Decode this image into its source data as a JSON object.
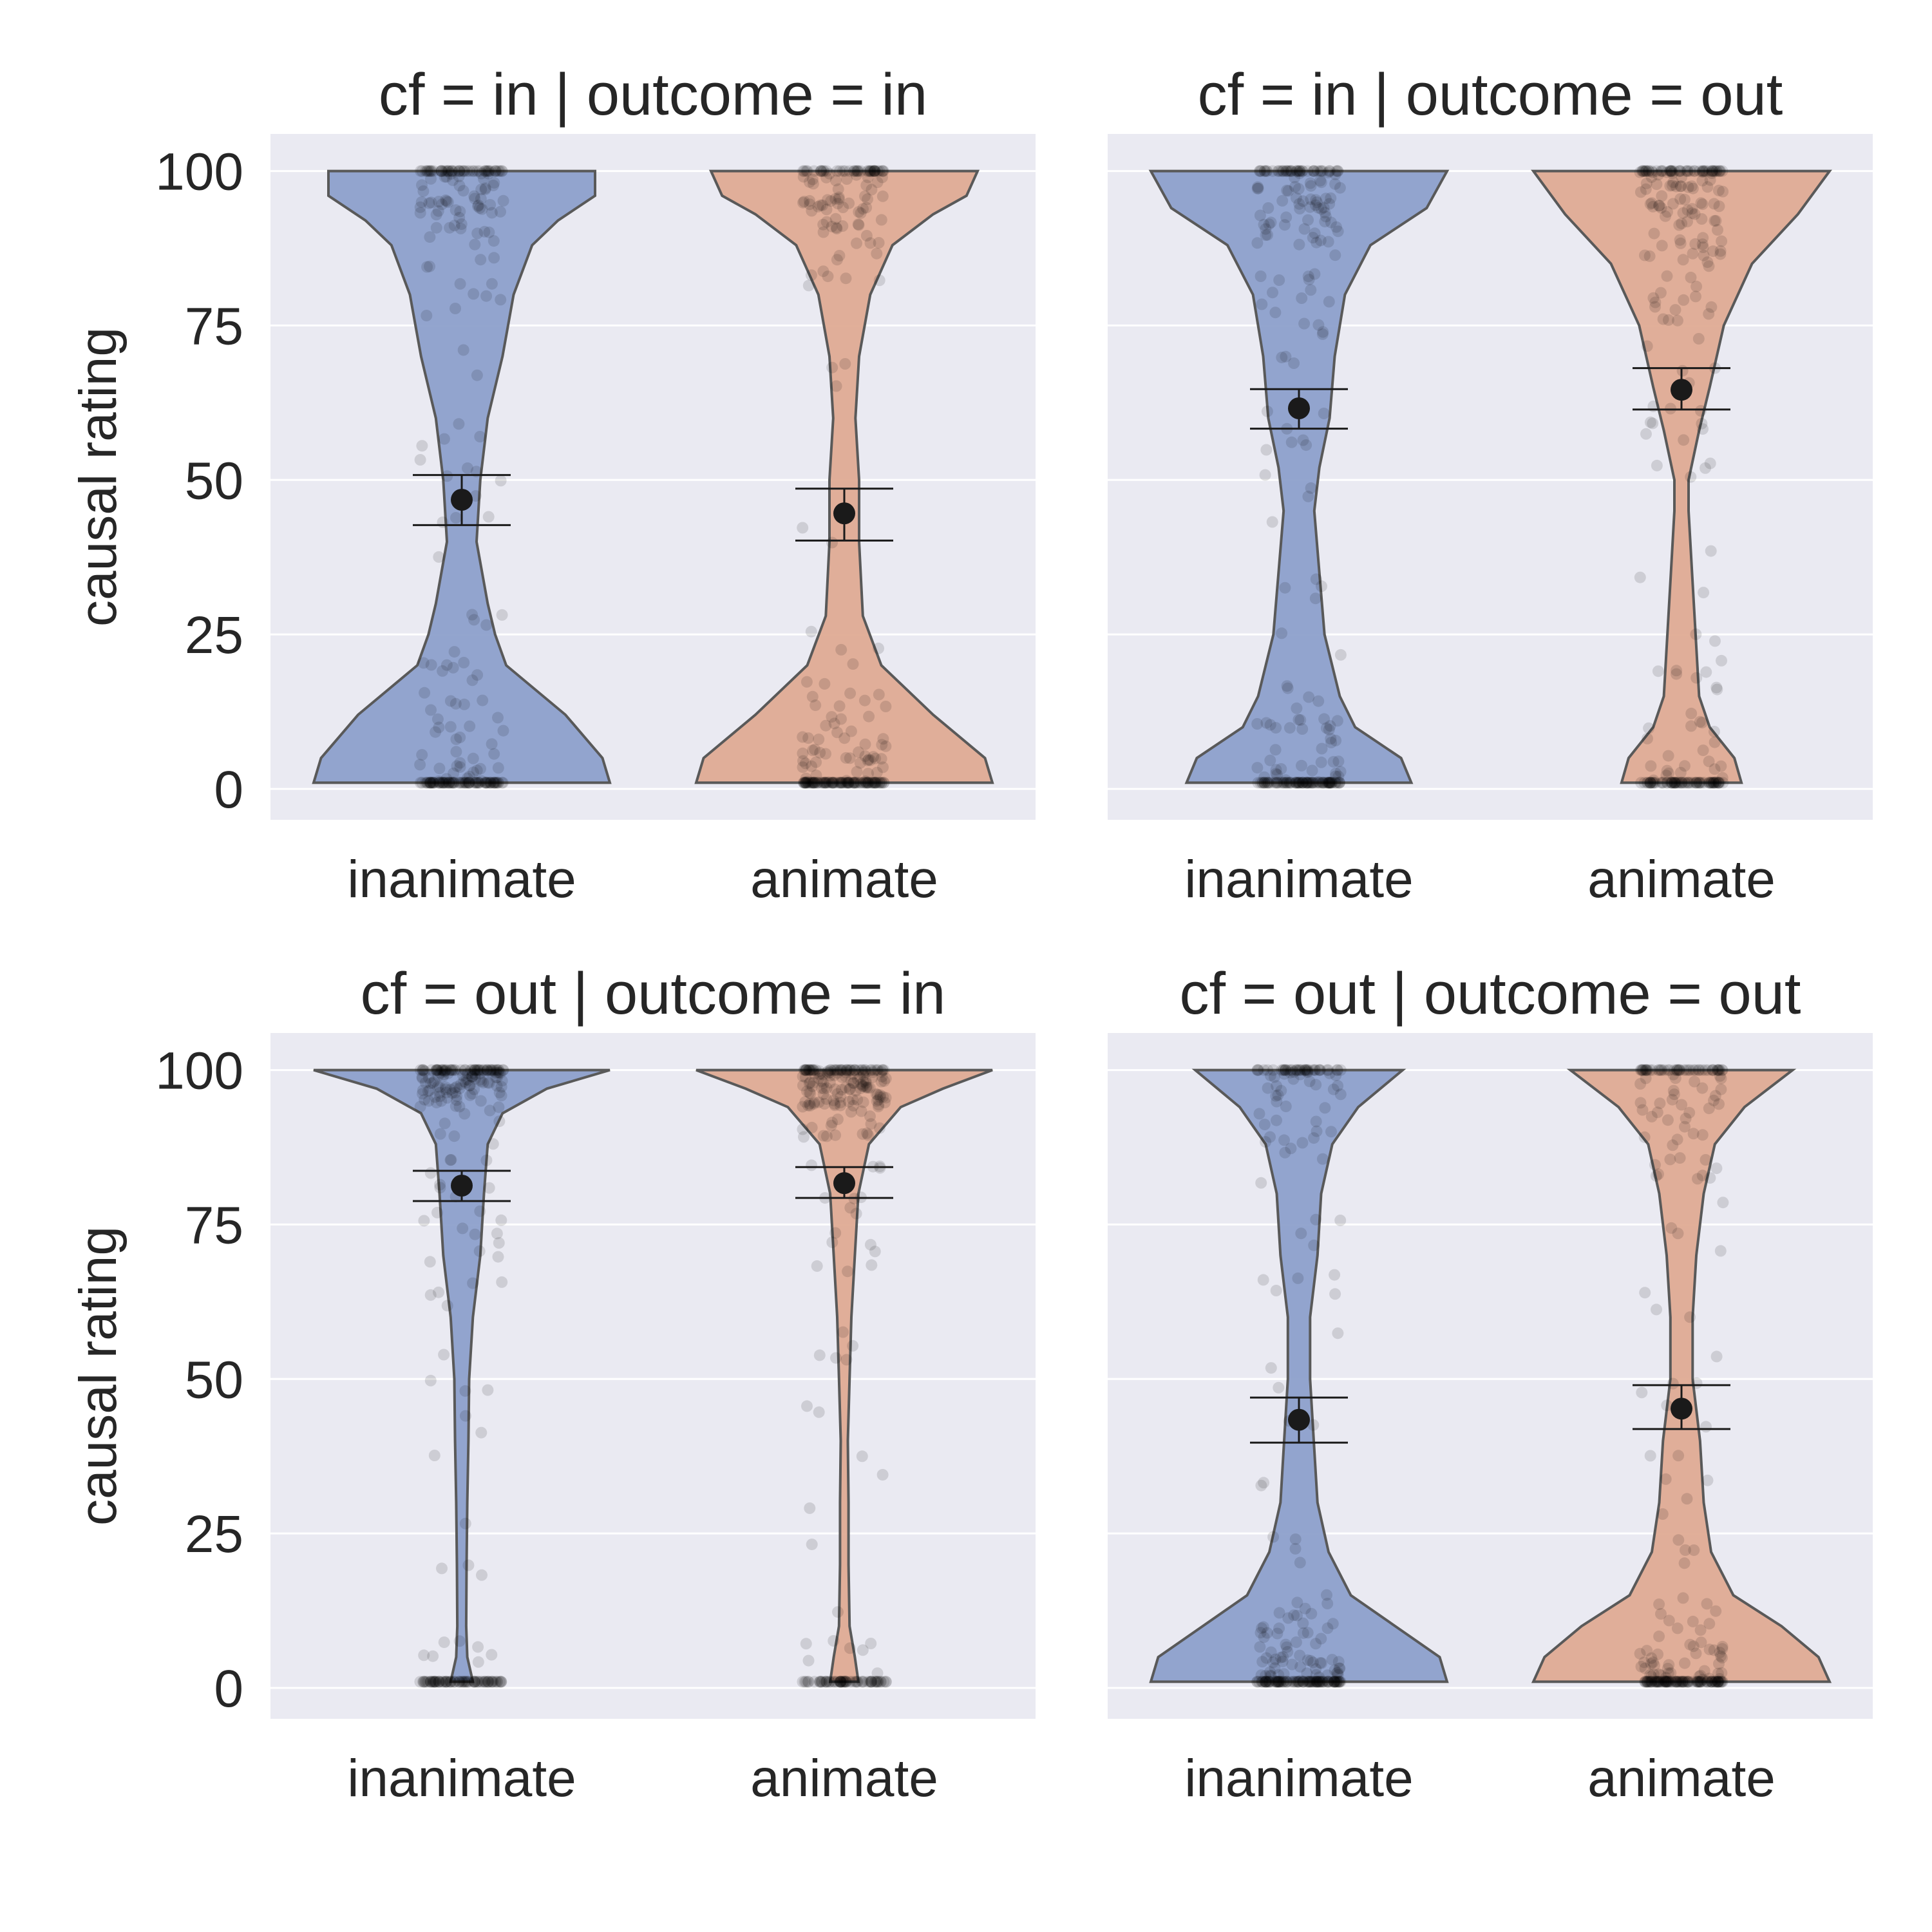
{
  "chart_data": [
    {
      "type": "violin",
      "title": "cf = in | outcome = in",
      "ylabel": "causal rating",
      "categories": [
        "inanimate",
        "animate"
      ],
      "ylim": [
        -5,
        106
      ],
      "yticks": [
        0,
        25,
        50,
        75,
        100
      ],
      "show_ylabel": true,
      "show_ytick_labels": true,
      "groups": [
        {
          "name": "inanimate",
          "color": "#8da0cb",
          "mean": 46.8,
          "ci": [
            42.7,
            50.8
          ],
          "density": [
            [
              1,
              40
            ],
            [
              5,
              38
            ],
            [
              12,
              28
            ],
            [
              20,
              12
            ],
            [
              25,
              9
            ],
            [
              30,
              7
            ],
            [
              40,
              4
            ],
            [
              50,
              5
            ],
            [
              60,
              7
            ],
            [
              70,
              11
            ],
            [
              80,
              14
            ],
            [
              88,
              19
            ],
            [
              92,
              26
            ],
            [
              96,
              36
            ],
            [
              100,
              36
            ]
          ]
        },
        {
          "name": "animate",
          "color": "#dfab93",
          "mean": 44.6,
          "ci": [
            40.2,
            48.6
          ],
          "density": [
            [
              1,
              40
            ],
            [
              5,
              38
            ],
            [
              12,
              24
            ],
            [
              20,
              10
            ],
            [
              28,
              5
            ],
            [
              40,
              4
            ],
            [
              50,
              4
            ],
            [
              60,
              3
            ],
            [
              70,
              4
            ],
            [
              80,
              7
            ],
            [
              88,
              13
            ],
            [
              93,
              24
            ],
            [
              96,
              33
            ],
            [
              100,
              36
            ]
          ]
        }
      ]
    },
    {
      "type": "violin",
      "title": "cf = in | outcome = out",
      "ylabel": "",
      "categories": [
        "inanimate",
        "animate"
      ],
      "ylim": [
        -5,
        106
      ],
      "yticks": [
        0,
        25,
        50,
        75,
        100
      ],
      "show_ylabel": false,
      "show_ytick_labels": false,
      "groups": [
        {
          "name": "inanimate",
          "color": "#8da0cb",
          "mean": 61.6,
          "ci": [
            58.3,
            64.7
          ],
          "density": [
            [
              1,
              22
            ],
            [
              5,
              20
            ],
            [
              10,
              11
            ],
            [
              15,
              8
            ],
            [
              25,
              5
            ],
            [
              35,
              4
            ],
            [
              45,
              3
            ],
            [
              52,
              4
            ],
            [
              60,
              6
            ],
            [
              70,
              7
            ],
            [
              80,
              9
            ],
            [
              88,
              14
            ],
            [
              94,
              25
            ],
            [
              100,
              29
            ]
          ]
        },
        {
          "name": "animate",
          "color": "#dfab93",
          "mean": 64.6,
          "ci": [
            61.4,
            68.1
          ],
          "density": [
            [
              1,
              17
            ],
            [
              5,
              15
            ],
            [
              10,
              8
            ],
            [
              15,
              5
            ],
            [
              25,
              4
            ],
            [
              35,
              3
            ],
            [
              45,
              2
            ],
            [
              50,
              2
            ],
            [
              58,
              5
            ],
            [
              65,
              8
            ],
            [
              75,
              12
            ],
            [
              85,
              20
            ],
            [
              93,
              33
            ],
            [
              100,
              42
            ]
          ]
        }
      ]
    },
    {
      "type": "violin",
      "title": "cf = out | outcome = in",
      "ylabel": "causal rating",
      "categories": [
        "inanimate",
        "animate"
      ],
      "ylim": [
        -5,
        106
      ],
      "yticks": [
        0,
        25,
        50,
        75,
        100
      ],
      "show_ylabel": true,
      "show_ytick_labels": true,
      "groups": [
        {
          "name": "inanimate",
          "color": "#8da0cb",
          "mean": 81.3,
          "ci": [
            78.8,
            83.7
          ],
          "density": [
            [
              1,
              3
            ],
            [
              5,
              1.5
            ],
            [
              10,
              1.2
            ],
            [
              20,
              1.3
            ],
            [
              30,
              1.5
            ],
            [
              40,
              1.8
            ],
            [
              50,
              2
            ],
            [
              60,
              3
            ],
            [
              70,
              5
            ],
            [
              80,
              6
            ],
            [
              88,
              7
            ],
            [
              93,
              11
            ],
            [
              97,
              23
            ],
            [
              100,
              40
            ]
          ]
        },
        {
          "name": "animate",
          "color": "#dfab93",
          "mean": 81.7,
          "ci": [
            79.3,
            84.3
          ],
          "density": [
            [
              1,
              4
            ],
            [
              5,
              3
            ],
            [
              10,
              1.5
            ],
            [
              20,
              1.2
            ],
            [
              30,
              1.2
            ],
            [
              40,
              1
            ],
            [
              50,
              1.5
            ],
            [
              60,
              2
            ],
            [
              70,
              3
            ],
            [
              80,
              4
            ],
            [
              88,
              7
            ],
            [
              94,
              16
            ],
            [
              97,
              28
            ],
            [
              100,
              42
            ]
          ]
        }
      ]
    },
    {
      "type": "violin",
      "title": "cf = out | outcome = out",
      "ylabel": "",
      "categories": [
        "inanimate",
        "animate"
      ],
      "ylim": [
        -5,
        106
      ],
      "yticks": [
        0,
        25,
        50,
        75,
        100
      ],
      "show_ylabel": false,
      "show_ytick_labels": false,
      "groups": [
        {
          "name": "inanimate",
          "color": "#8da0cb",
          "mean": 43.4,
          "ci": [
            39.7,
            47.0
          ],
          "density": [
            [
              1,
              40
            ],
            [
              5,
              38
            ],
            [
              10,
              26
            ],
            [
              15,
              14
            ],
            [
              22,
              8
            ],
            [
              30,
              5
            ],
            [
              40,
              4
            ],
            [
              50,
              3
            ],
            [
              60,
              3
            ],
            [
              70,
              5
            ],
            [
              80,
              6
            ],
            [
              88,
              9
            ],
            [
              94,
              16
            ],
            [
              100,
              28
            ]
          ]
        },
        {
          "name": "animate",
          "color": "#dfab93",
          "mean": 45.2,
          "ci": [
            41.9,
            49.0
          ],
          "density": [
            [
              1,
              40
            ],
            [
              5,
              37
            ],
            [
              10,
              27
            ],
            [
              15,
              14
            ],
            [
              22,
              8
            ],
            [
              30,
              6
            ],
            [
              40,
              5
            ],
            [
              50,
              3
            ],
            [
              60,
              3
            ],
            [
              70,
              4
            ],
            [
              80,
              6
            ],
            [
              88,
              9
            ],
            [
              94,
              17
            ],
            [
              100,
              30
            ]
          ]
        }
      ]
    }
  ]
}
